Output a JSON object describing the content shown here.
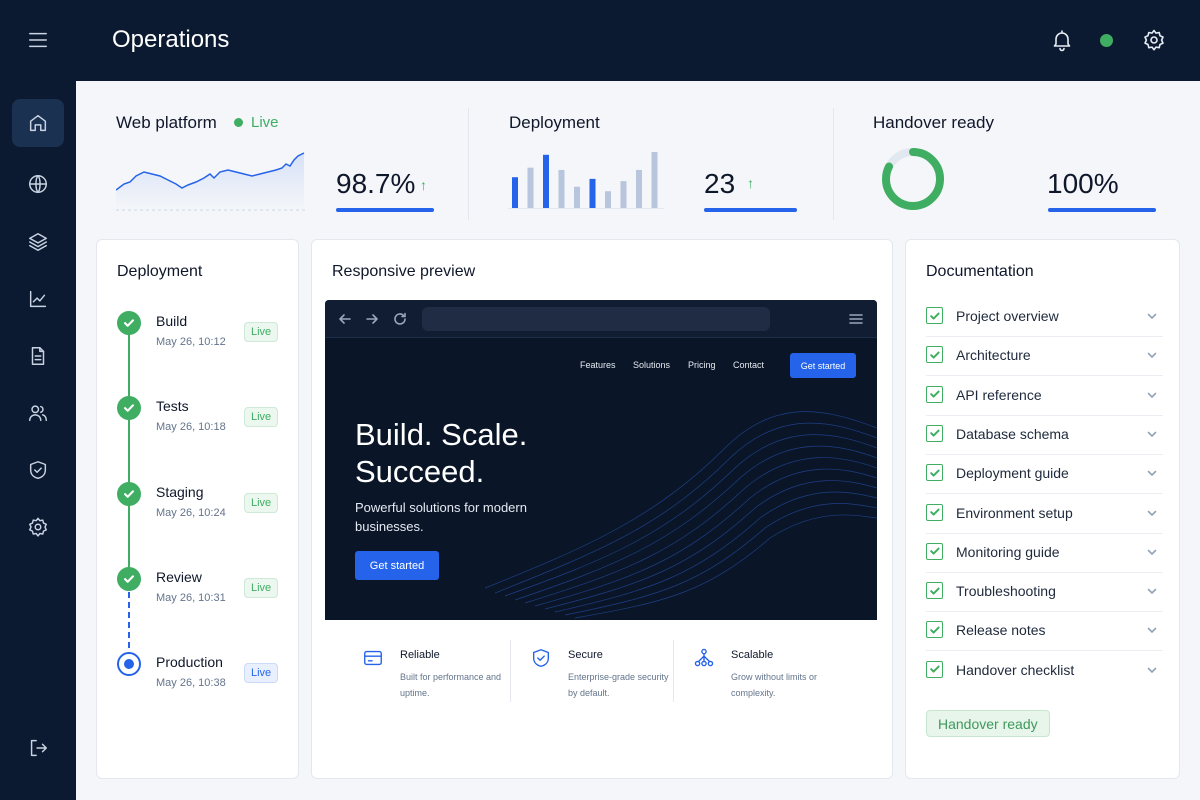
{
  "header": {
    "title": "Operations"
  },
  "stats": {
    "web": {
      "title": "Web platform",
      "status": "Live",
      "value": "98.7%",
      "arrow": "↑"
    },
    "deployment": {
      "title": "Deployment",
      "value": "23",
      "arrow": "↑",
      "bars": [
        0.55,
        0.72,
        0.95,
        0.68,
        0.38,
        0.52,
        0.3,
        0.48,
        0.68,
        1.0
      ]
    },
    "handover": {
      "title": "Handover ready",
      "value": "100%"
    }
  },
  "deployment_card": {
    "title": "Deployment",
    "steps": [
      {
        "name": "Build",
        "time": "May 26, 10:12",
        "badge": "Live"
      },
      {
        "name": "Tests",
        "time": "May 26, 10:18",
        "badge": "Live"
      },
      {
        "name": "Staging",
        "time": "May 26, 10:24",
        "badge": "Live"
      },
      {
        "name": "Review",
        "time": "May 26, 10:31",
        "badge": "Live"
      },
      {
        "name": "Production",
        "time": "May 26, 10:38",
        "badge": "Live"
      }
    ]
  },
  "preview": {
    "title": "Responsive preview",
    "nav": [
      "Features",
      "Solutions",
      "Pricing",
      "Contact"
    ],
    "nav_cta": "Get started",
    "hero_title": "Build. Scale. Succeed.",
    "hero_sub": "Powerful solutions for modern businesses.",
    "hero_cta": "Get started",
    "features": [
      {
        "name": "Reliable",
        "desc": "Built for performance and uptime."
      },
      {
        "name": "Secure",
        "desc": "Enterprise-grade security by default."
      },
      {
        "name": "Scalable",
        "desc": "Grow without limits or complexity."
      }
    ]
  },
  "documentation": {
    "title": "Documentation",
    "items": [
      "Project overview",
      "Architecture",
      "API reference",
      "Database schema",
      "Deployment guide",
      "Environment setup",
      "Monitoring guide",
      "Troubleshooting",
      "Release notes",
      "Handover checklist"
    ],
    "badge": "Handover ready"
  },
  "colors": {
    "navy": "#0b1a30",
    "accent": "#2563eb",
    "success": "#3fae62"
  }
}
